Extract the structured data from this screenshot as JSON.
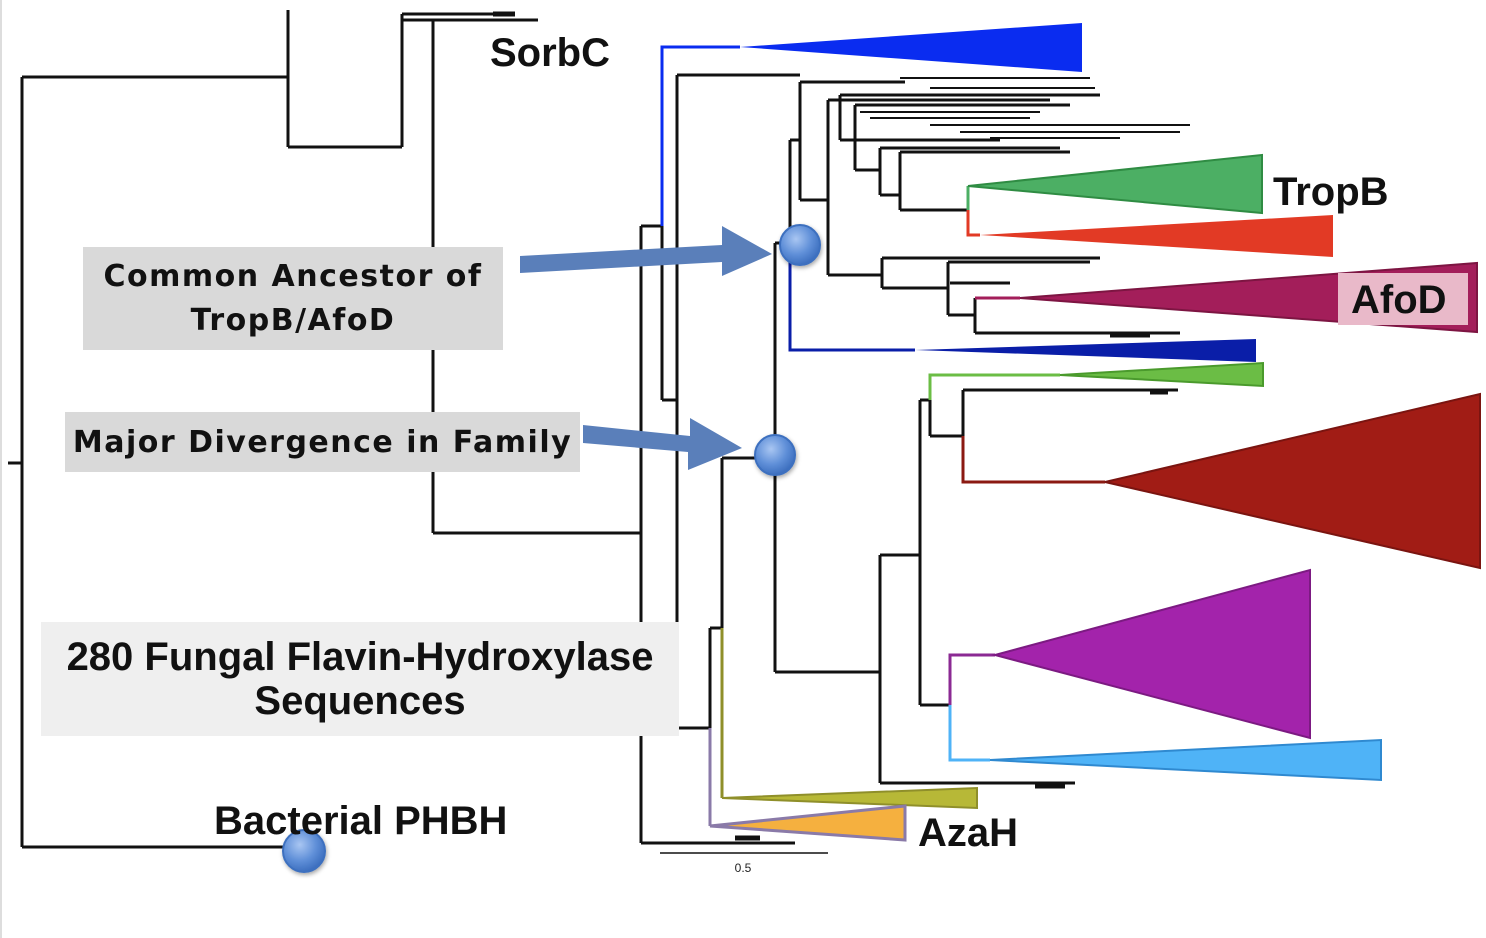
{
  "figure": {
    "clades": {
      "sorbc": "SorbC",
      "tropb": "TropB",
      "afod": "AfoD",
      "azah": "AzaH",
      "bacterial": "Bacterial PHBH"
    },
    "callouts": {
      "ancestor_line1": "Common Ancestor of",
      "ancestor_line2": "TropB/AfoD",
      "divergence": "Major Divergence in Family",
      "count_line1": "280 Fungal Flavin-Hydroxylase",
      "count_line2": "Sequences"
    },
    "scale_bar": {
      "label": "0.5"
    },
    "colors": {
      "branch": "#111111",
      "clade_blue_top": "#0a2cf0",
      "clade_green": "#4caf64",
      "clade_red": "#e23a25",
      "clade_afod": "#a31e5a",
      "clade_navy": "#0a1ea8",
      "clade_lightgreen": "#6bbd45",
      "clade_darkred": "#a11c15",
      "clade_purple": "#a323ab",
      "clade_lightblue": "#4fb3f7",
      "clade_olive": "#b7b837",
      "clade_orange": "#f5b03f",
      "node_marker": "#5f8fd8",
      "arrow": "#5a7fba",
      "callout_bg": "#d9d9d9"
    }
  }
}
